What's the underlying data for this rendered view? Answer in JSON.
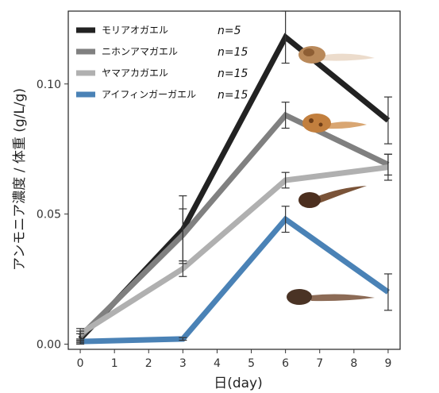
{
  "chart_data": {
    "type": "line",
    "xlabel": "日(day)",
    "ylabel": "アンモニア濃度 / 体重 (g/L/g)",
    "x": [
      0,
      3,
      6,
      9
    ],
    "xticks": [
      0,
      1,
      2,
      3,
      4,
      5,
      6,
      7,
      8,
      9
    ],
    "xlim": [
      -0.35,
      9.35
    ],
    "ylim": [
      -0.002,
      0.128
    ],
    "yticks": [
      {
        "value": 0.0,
        "label": "0.00"
      },
      {
        "value": 0.05,
        "label": "0.05"
      },
      {
        "value": 0.1,
        "label": "0.10"
      }
    ],
    "grid": false,
    "legend_position": "top-left",
    "series": [
      {
        "name": "モリアオガエル",
        "n": "n=5",
        "color": "#222222",
        "values": [
          0.002,
          0.044,
          0.118,
          0.086
        ],
        "errors": [
          0.002,
          0.013,
          0.01,
          0.009
        ]
      },
      {
        "name": "ニホンアマガエル",
        "n": "n=15",
        "color": "#808080",
        "values": [
          0.003,
          0.042,
          0.088,
          0.069
        ],
        "errors": [
          0.002,
          0.01,
          0.005,
          0.004
        ]
      },
      {
        "name": "ヤマアカガエル",
        "n": "n=15",
        "color": "#b0b0b0",
        "values": [
          0.004,
          0.029,
          0.063,
          0.068
        ],
        "errors": [
          0.002,
          0.003,
          0.003,
          0.005
        ]
      },
      {
        "name": "アイフィンガーガエル",
        "n": "n=15",
        "color": "#4a82b6",
        "values": [
          0.001,
          0.002,
          0.048,
          0.02
        ],
        "errors": [
          0.0005,
          0.0005,
          0.005,
          0.007
        ]
      }
    ]
  }
}
